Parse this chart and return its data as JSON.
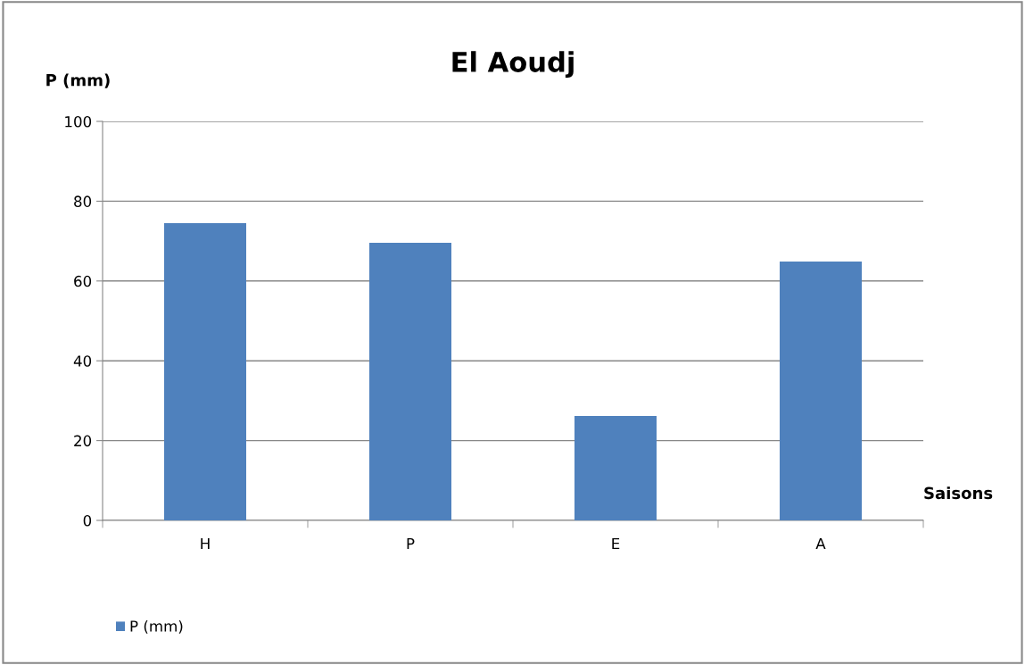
{
  "chart_data": {
    "type": "bar",
    "title": "El Aoudj",
    "ylabel": "P (mm)",
    "xlabel": "Saisons",
    "categories": [
      "H",
      "P",
      "E",
      "A"
    ],
    "series": [
      {
        "name": "P (mm)",
        "color": "#4f81bd",
        "values": [
          74.5,
          69.6,
          26.2,
          64.9
        ]
      }
    ],
    "ylim": [
      0,
      100
    ],
    "yticks": [
      0,
      20,
      40,
      60,
      80,
      100
    ],
    "grid": "y",
    "legend": "bottom left"
  }
}
